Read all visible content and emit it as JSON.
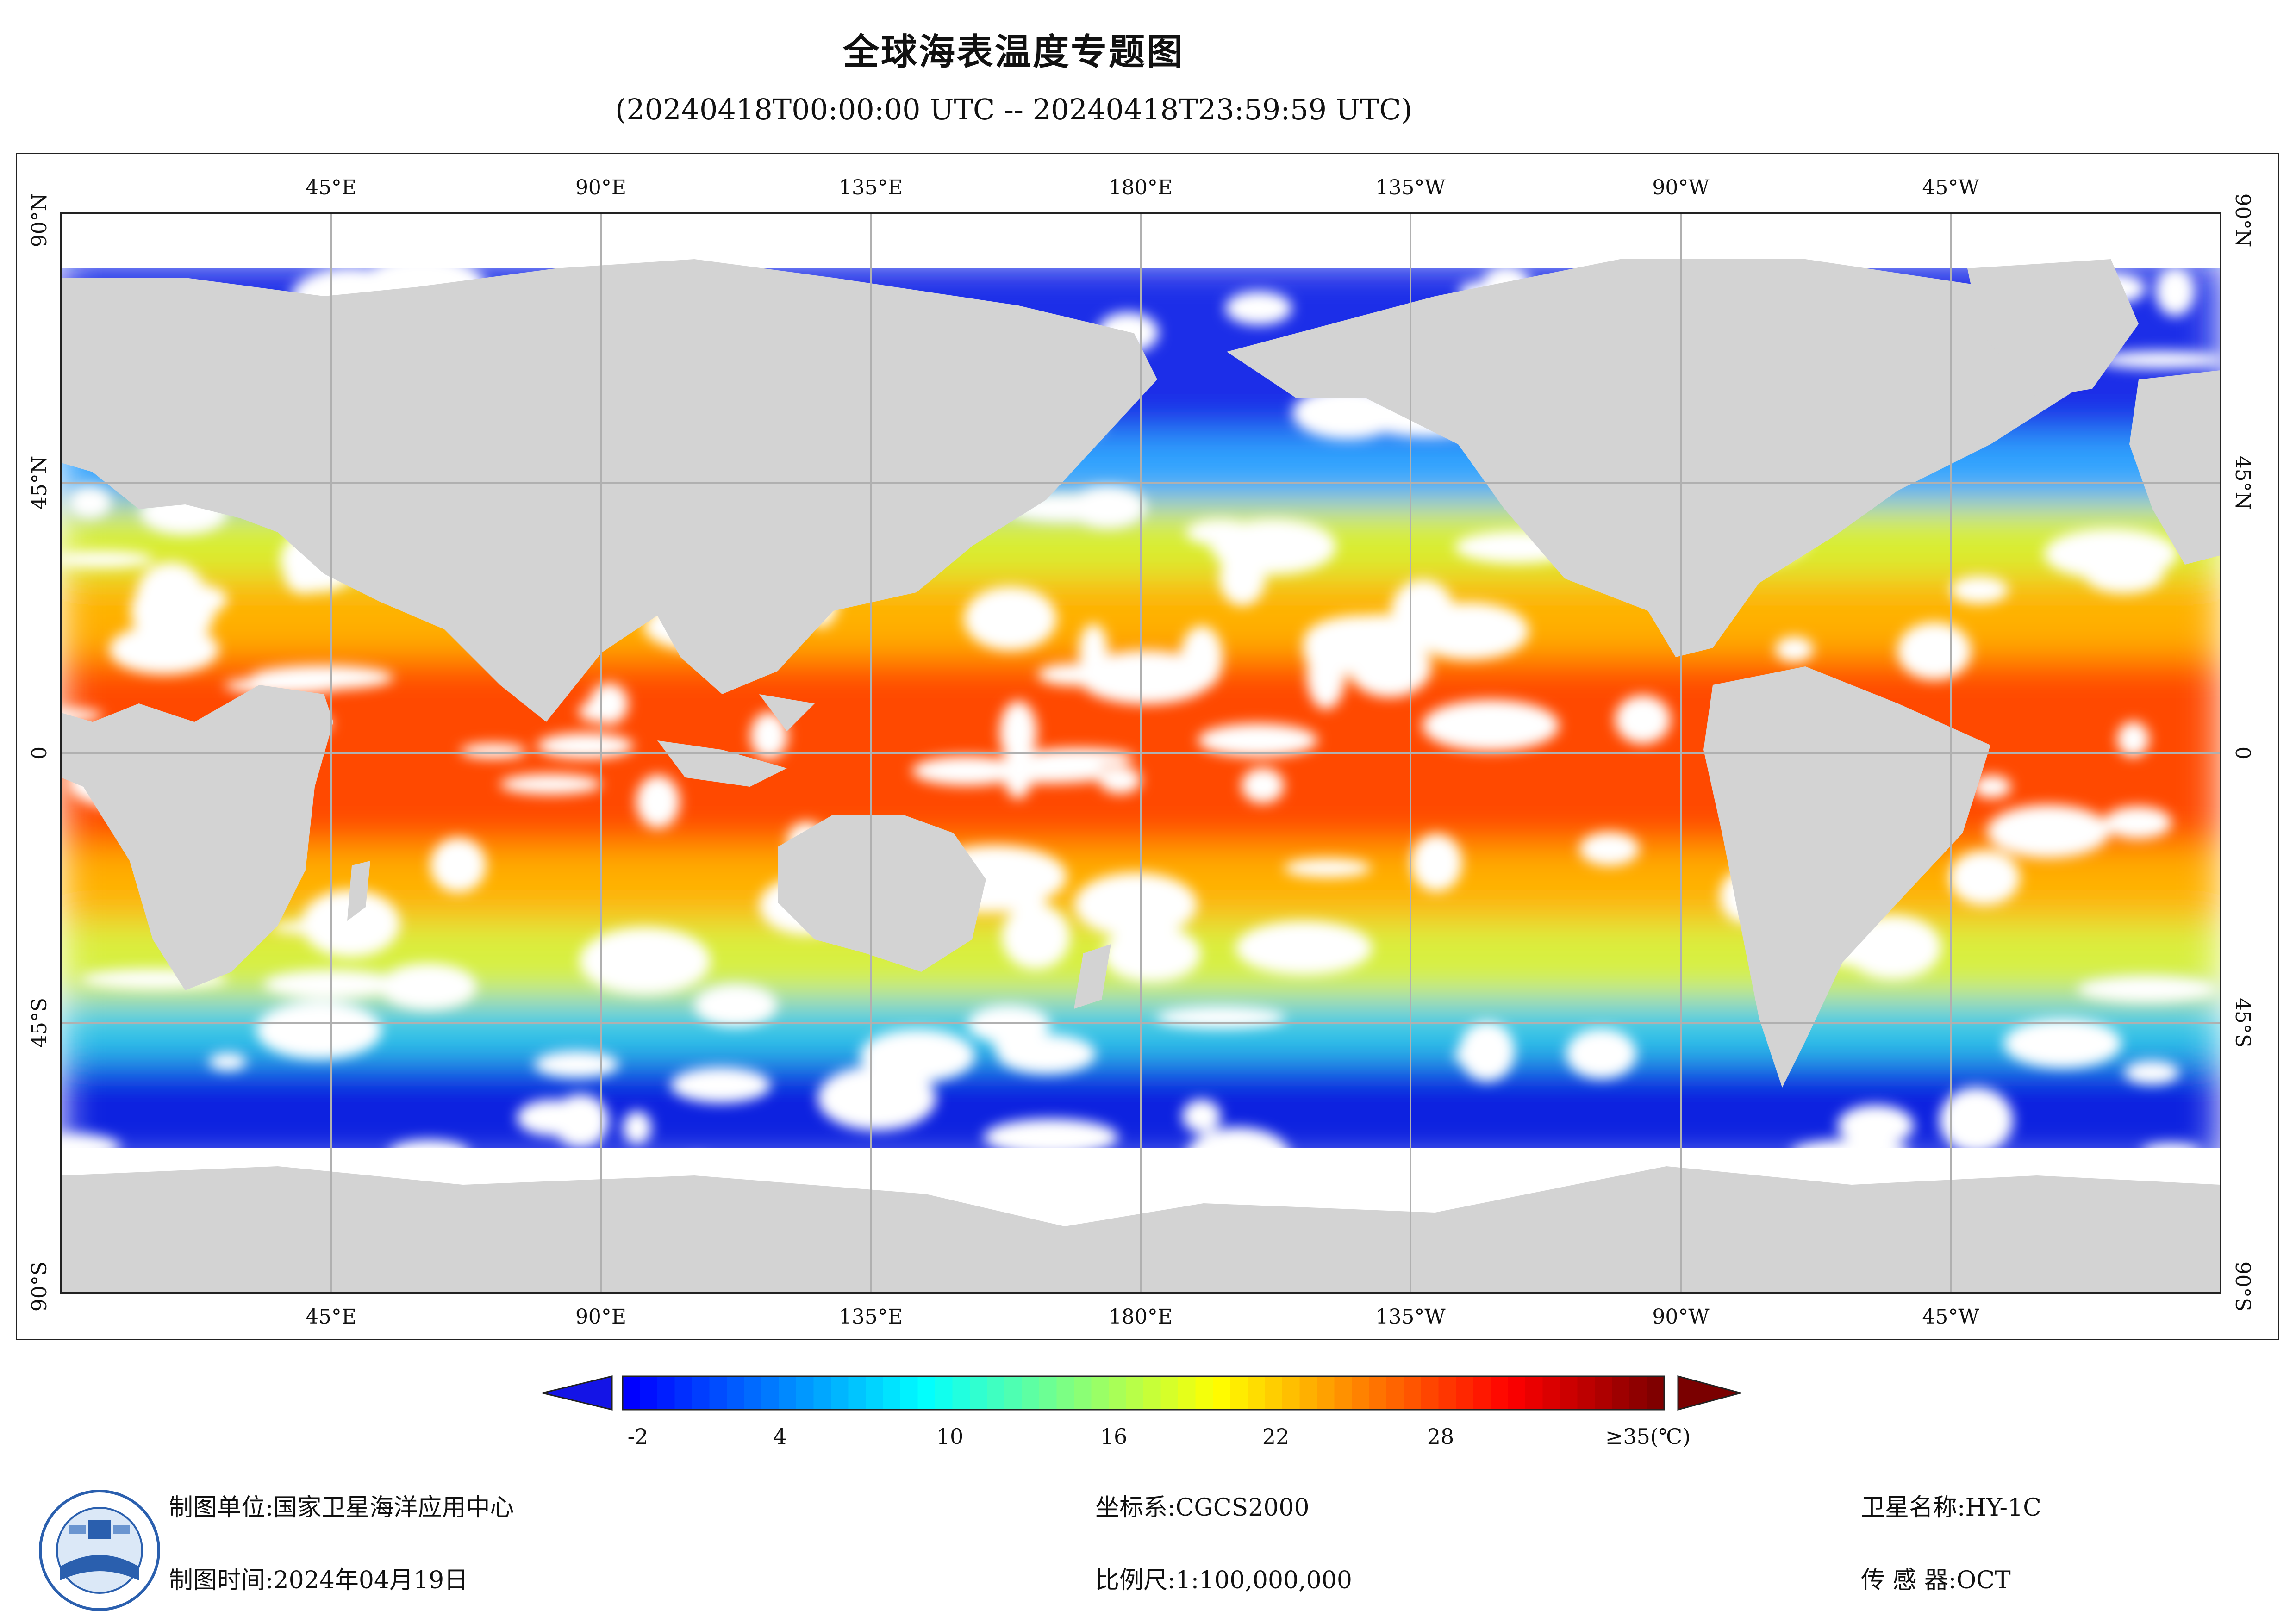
{
  "title": "全球海表温度专题图",
  "subtitle": "(20240418T00:00:00 UTC -- 20240418T23:59:59 UTC)",
  "map": {
    "lon_labels_top": [
      "45°E",
      "90°E",
      "135°E",
      "180°E",
      "135°W",
      "90°W",
      "45°W"
    ],
    "lon_labels_bottom": [
      "45°E",
      "90°E",
      "135°E",
      "180°E",
      "135°W",
      "90°W",
      "45°W"
    ],
    "lat_labels": [
      "90°N",
      "45°N",
      "0",
      "45°S",
      "90°S"
    ],
    "land_color": "#d3d3d3",
    "cloud_color": "#ffffff",
    "graticule_color": "#b0b0b0"
  },
  "colorbar": {
    "ticks": [
      "-2",
      "4",
      "10",
      "16",
      "22",
      "28",
      "≥35(℃)"
    ],
    "min": -2,
    "max": 35,
    "colors": [
      "#0000ff",
      "#0040ff",
      "#0080ff",
      "#00c0ff",
      "#00ffff",
      "#40ffc0",
      "#80ff80",
      "#c0ff40",
      "#ffff00",
      "#ffc000",
      "#ff8000",
      "#ff4000",
      "#ff0000",
      "#c00000",
      "#800000"
    ],
    "under_color": "#1414e6",
    "over_color": "#7a0000"
  },
  "footer": {
    "unit_label": "制图单位:",
    "unit_value": "国家卫星海洋应用中心",
    "time_label": "制图时间:",
    "time_value": "2024年04月19日",
    "crs_label": "坐标系:",
    "crs_value": "CGCS2000",
    "scale_label": "比例尺:",
    "scale_value": "1:100,000,000",
    "satellite_label": "卫星名称:",
    "satellite_value": "HY-1C",
    "sensor_label": "传 感 器:",
    "sensor_value": "OCT"
  }
}
